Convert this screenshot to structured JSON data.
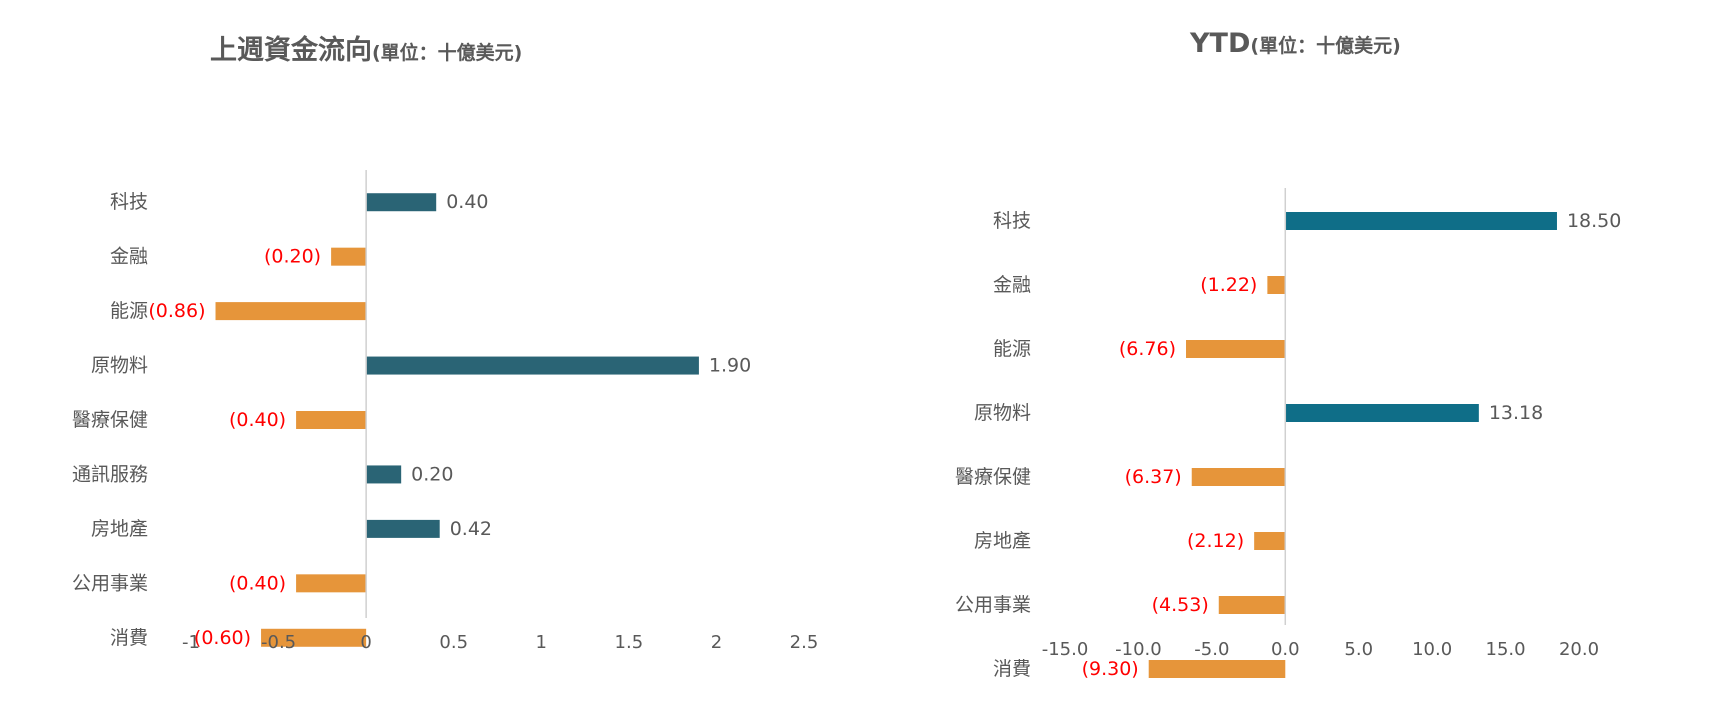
{
  "chart_data": [
    {
      "type": "bar",
      "orientation": "horizontal",
      "title": "上週資金流向",
      "subtitle": "(單位：十億美元)",
      "categories": [
        "科技",
        "金融",
        "能源",
        "原物料",
        "醫療保健",
        "通訊服務",
        "房地產",
        "公用事業",
        "消費"
      ],
      "values": [
        0.4,
        -0.2,
        -0.86,
        1.9,
        -0.4,
        0.2,
        0.42,
        -0.4,
        -0.6
      ],
      "data_labels": [
        "0.40",
        "(0.20)",
        "(0.86)",
        "1.90",
        "(0.40)",
        "0.20",
        "0.42",
        "(0.40)",
        "(0.60)"
      ],
      "xlim": [
        -1,
        2.5
      ],
      "x_ticks": [
        "-1",
        "-0.5",
        "0",
        "0.5",
        "1",
        "1.5",
        "2",
        "2.5"
      ],
      "grid": false,
      "colors": {
        "positive": "#2a6475",
        "negative": "#e6953a",
        "negative_label": "#ff0000",
        "axis": "#d0d0d0",
        "text": "#595959"
      }
    },
    {
      "type": "bar",
      "orientation": "horizontal",
      "title": "YTD",
      "subtitle": "(單位：十億美元)",
      "categories": [
        "科技",
        "金融",
        "能源",
        "原物料",
        "醫療保健",
        "房地產",
        "公用事業",
        "消費"
      ],
      "values": [
        18.5,
        -1.22,
        -6.76,
        13.18,
        -6.37,
        -2.12,
        -4.53,
        -9.3
      ],
      "data_labels": [
        "18.50",
        "(1.22)",
        "(6.76)",
        "13.18",
        "(6.37)",
        "(2.12)",
        "(4.53)",
        "(9.30)"
      ],
      "xlim": [
        -15,
        20
      ],
      "x_ticks": [
        "-15.0",
        "-10.0",
        "-5.0",
        "0.0",
        "5.0",
        "10.0",
        "15.0",
        "20.0"
      ],
      "grid": false,
      "colors": {
        "positive": "#0f6e88",
        "negative": "#e6953a",
        "negative_label": "#ff0000",
        "axis": "#d0d0d0",
        "text": "#595959"
      }
    }
  ]
}
